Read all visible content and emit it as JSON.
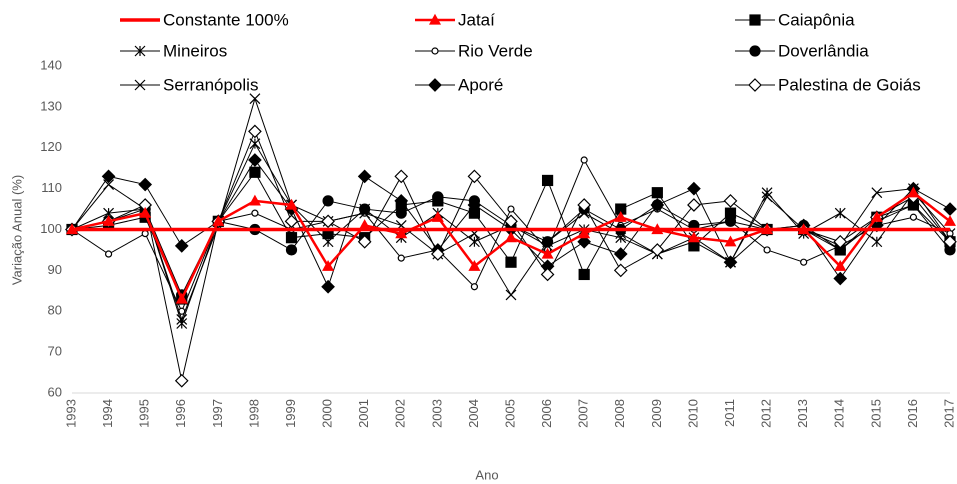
{
  "chart_data": {
    "type": "line",
    "x_label": "Ano",
    "y_label": "Variação Anual (%)",
    "categories": [
      "1993",
      "1994",
      "1995",
      "1996",
      "1997",
      "1998",
      "1999",
      "2000",
      "2001",
      "2002",
      "2003",
      "2004",
      "2005",
      "2006",
      "2007",
      "2008",
      "2009",
      "2010",
      "2011",
      "2012",
      "2013",
      "2014",
      "2015",
      "2016",
      "2017"
    ],
    "ylim": [
      60,
      140
    ],
    "yticks": [
      60,
      70,
      80,
      90,
      100,
      110,
      120,
      130,
      140
    ],
    "grid": false,
    "series": [
      {
        "name": "Constante 100%",
        "color": "#ff0000",
        "marker": "none",
        "values": [
          100,
          100,
          100,
          100,
          100,
          100,
          100,
          100,
          100,
          100,
          100,
          100,
          100,
          100,
          100,
          100,
          100,
          100,
          100,
          100,
          100,
          100,
          100,
          100,
          100
        ]
      },
      {
        "name": "Jataí",
        "color": "#ff0000",
        "marker": "triangle",
        "values": [
          100,
          102,
          104,
          83,
          102,
          107,
          106,
          91,
          101,
          99,
          103,
          91,
          98,
          94,
          99,
          103,
          100,
          98,
          97,
          100,
          100,
          91,
          103,
          109,
          102
        ]
      },
      {
        "name": "Caiapônia",
        "color": "#000000",
        "marker": "square",
        "values": [
          100,
          101,
          103,
          83,
          102,
          114,
          98,
          99,
          98,
          106,
          107,
          104,
          92,
          112,
          89,
          105,
          109,
          96,
          104,
          100,
          100,
          95,
          103,
          106,
          97
        ]
      },
      {
        "name": "Mineiros",
        "color": "#000000",
        "marker": "star",
        "values": [
          100,
          104,
          105,
          77,
          102,
          121,
          106,
          97,
          105,
          98,
          104,
          97,
          101,
          96,
          100,
          98,
          94,
          98,
          92,
          109,
          99,
          104,
          97,
          109,
          99
        ]
      },
      {
        "name": "Rio Verde",
        "color": "#000000",
        "marker": "open-circle",
        "values": [
          100,
          94,
          99,
          80,
          102,
          104,
          100,
          102,
          104,
          93,
          95,
          86,
          105,
          95,
          117,
          101,
          105,
          100,
          102,
          95,
          92,
          96,
          101,
          103,
          99
        ]
      },
      {
        "name": "Doverlândia",
        "color": "#000000",
        "marker": "circle",
        "values": [
          100,
          102,
          105,
          84,
          102,
          100,
          95,
          107,
          105,
          104,
          108,
          107,
          101,
          97,
          105,
          100,
          106,
          101,
          102,
          100,
          101,
          95,
          102,
          106,
          95
        ]
      },
      {
        "name": "Serranópolis",
        "color": "#000000",
        "marker": "x",
        "values": [
          100,
          111,
          105,
          78,
          101,
          132,
          106,
          102,
          104,
          101,
          94,
          99,
          84,
          97,
          104,
          99,
          94,
          97,
          92,
          108,
          100,
          96,
          109,
          110,
          97
        ]
      },
      {
        "name": "Aporé",
        "color": "#000000",
        "marker": "diamond",
        "values": [
          100,
          113,
          111,
          96,
          102,
          117,
          105,
          86,
          113,
          107,
          95,
          106,
          100,
          91,
          97,
          94,
          106,
          110,
          92,
          100,
          101,
          88,
          101,
          110,
          105
        ]
      },
      {
        "name": "Palestina de Goiás",
        "color": "#000000",
        "marker": "open-diamond",
        "values": [
          100,
          102,
          106,
          63,
          102,
          124,
          102,
          102,
          97,
          113,
          94,
          113,
          102,
          89,
          106,
          90,
          95,
          106,
          107,
          100,
          100,
          97,
          103,
          108,
          97
        ]
      }
    ]
  }
}
